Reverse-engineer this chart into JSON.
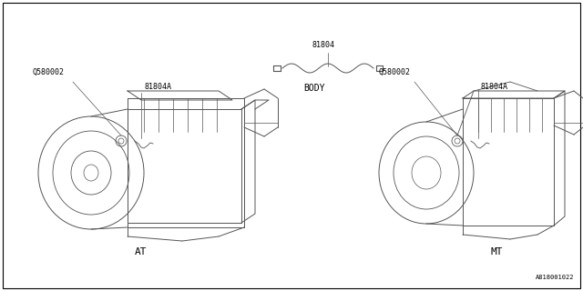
{
  "background_color": "#ffffff",
  "diagram_id": "A818001022",
  "label_AT": "AT",
  "label_MT": "MT",
  "label_BODY": "BODY",
  "label_81804": "81804",
  "label_Q580002": "Q580002",
  "label_81804A": "81804A",
  "line_color": "#555555",
  "text_color": "#000000",
  "font_size_small": 6,
  "font_size_label": 7,
  "font_size_id": 5
}
